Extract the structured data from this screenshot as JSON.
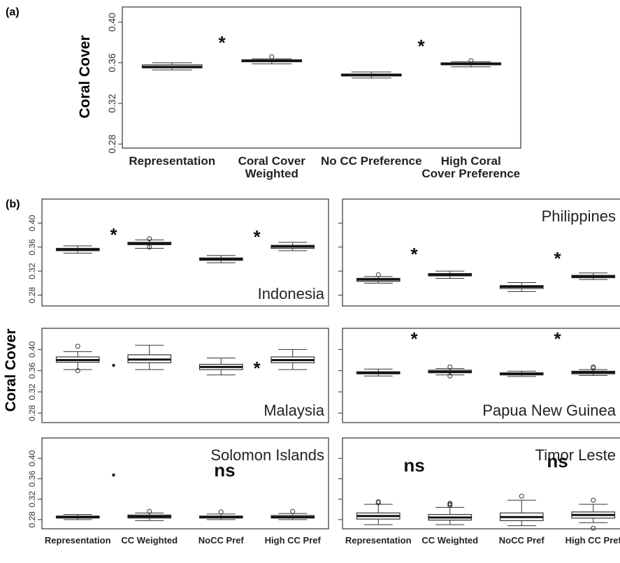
{
  "chart_data": [
    {
      "type": "box",
      "panel_label": "(a)",
      "ylabel": "Coral Cover",
      "categories": [
        "Representation",
        "Coral Cover Weighted",
        "No CC Preference",
        "High Coral Cover Preference"
      ],
      "boxes": [
        {
          "min": 0.353,
          "q1": 0.355,
          "median": 0.356,
          "q3": 0.358,
          "max": 0.36
        },
        {
          "min": 0.359,
          "q1": 0.361,
          "median": 0.362,
          "q3": 0.363,
          "max": 0.364,
          "outliers": [
            0.366
          ]
        },
        {
          "min": 0.345,
          "q1": 0.347,
          "median": 0.348,
          "q3": 0.349,
          "max": 0.351
        },
        {
          "min": 0.356,
          "q1": 0.358,
          "median": 0.359,
          "q3": 0.36,
          "max": 0.361,
          "outliers": [
            0.362
          ]
        }
      ],
      "annotations": [
        "*",
        "*"
      ],
      "ylim": [
        0.276,
        0.415
      ],
      "yticks": [
        0.28,
        0.32,
        0.36,
        {
          "value": 0.4,
          "label": "0.40"
        }
      ]
    },
    {
      "type": "box",
      "panel_label": "(b)",
      "ylabel": "Coral Cover",
      "title": "Indonesia",
      "boxes": [
        {
          "min": 0.35,
          "q1": 0.354,
          "median": 0.356,
          "q3": 0.358,
          "max": 0.362
        },
        {
          "min": 0.358,
          "q1": 0.364,
          "median": 0.366,
          "q3": 0.368,
          "max": 0.372,
          "outliers": [
            0.374,
            0.36
          ]
        },
        {
          "min": 0.334,
          "q1": 0.338,
          "median": 0.34,
          "q3": 0.342,
          "max": 0.346
        },
        {
          "min": 0.354,
          "q1": 0.358,
          "median": 0.361,
          "q3": 0.363,
          "max": 0.368
        }
      ],
      "annotations": [
        "*",
        "*"
      ],
      "ylim": [
        0.262,
        0.44
      ],
      "yticks": [
        0.28,
        0.32,
        0.36,
        {
          "value": 0.4,
          "label": "0.40"
        }
      ]
    },
    {
      "type": "box",
      "title": "Philippines",
      "boxes": [
        {
          "min": 0.3,
          "q1": 0.303,
          "median": 0.306,
          "q3": 0.308,
          "max": 0.311,
          "outliers": [
            0.314
          ]
        },
        {
          "min": 0.308,
          "q1": 0.312,
          "median": 0.314,
          "q3": 0.316,
          "max": 0.32
        },
        {
          "min": 0.286,
          "q1": 0.291,
          "median": 0.294,
          "q3": 0.296,
          "max": 0.301
        },
        {
          "min": 0.306,
          "q1": 0.309,
          "median": 0.311,
          "q3": 0.313,
          "max": 0.317
        }
      ],
      "annotations": [
        "*",
        "*"
      ],
      "ylim": [
        0.262,
        0.44
      ],
      "yticks": [
        0.28,
        0.32,
        0.36,
        0.4
      ]
    },
    {
      "type": "box",
      "title": "Malaysia",
      "boxes": [
        {
          "min": 0.362,
          "q1": 0.376,
          "median": 0.38,
          "q3": 0.386,
          "max": 0.396,
          "outliers": [
            0.406,
            0.36
          ]
        },
        {
          "min": 0.362,
          "q1": 0.375,
          "median": 0.381,
          "q3": 0.39,
          "max": 0.408
        },
        {
          "min": 0.352,
          "q1": 0.362,
          "median": 0.367,
          "q3": 0.372,
          "max": 0.384
        },
        {
          "min": 0.362,
          "q1": 0.375,
          "median": 0.38,
          "q3": 0.386,
          "max": 0.4
        }
      ],
      "annotations": [
        ".",
        "*"
      ],
      "ylim": [
        0.262,
        0.44
      ],
      "yticks": [
        0.28,
        0.32,
        0.36,
        {
          "value": 0.4,
          "label": "0.40"
        }
      ]
    },
    {
      "type": "box",
      "title": "Papua New Guinea",
      "boxes": [
        {
          "min": 0.35,
          "q1": 0.354,
          "median": 0.356,
          "q3": 0.358,
          "max": 0.363
        },
        {
          "min": 0.352,
          "q1": 0.356,
          "median": 0.358,
          "q3": 0.361,
          "max": 0.364,
          "outliers": [
            0.367,
            0.35
          ]
        },
        {
          "min": 0.349,
          "q1": 0.352,
          "median": 0.354,
          "q3": 0.356,
          "max": 0.359
        },
        {
          "min": 0.351,
          "q1": 0.354,
          "median": 0.357,
          "q3": 0.359,
          "max": 0.362,
          "outliers": [
            0.365,
            0.367
          ]
        }
      ],
      "annotations": [
        "*",
        "*"
      ],
      "ylim": [
        0.262,
        0.44
      ],
      "yticks": [
        0.28,
        0.32,
        0.36,
        0.4
      ]
    },
    {
      "type": "box",
      "title": "Solomon Islands",
      "categories": [
        "Representation",
        "CC Weighted",
        "NoCC Pref",
        "High CC Pref"
      ],
      "boxes": [
        {
          "min": 0.28,
          "q1": 0.283,
          "median": 0.285,
          "q3": 0.287,
          "max": 0.29
        },
        {
          "min": 0.278,
          "q1": 0.283,
          "median": 0.286,
          "q3": 0.289,
          "max": 0.293,
          "outliers": [
            0.296
          ]
        },
        {
          "min": 0.28,
          "q1": 0.283,
          "median": 0.285,
          "q3": 0.287,
          "max": 0.291,
          "outliers": [
            0.295
          ]
        },
        {
          "min": 0.28,
          "q1": 0.283,
          "median": 0.285,
          "q3": 0.288,
          "max": 0.292,
          "outliers": [
            0.296
          ]
        }
      ],
      "annotations": [
        ".",
        "ns"
      ],
      "ylim": [
        0.262,
        0.44
      ],
      "yticks": [
        0.28,
        0.32,
        0.36,
        {
          "value": 0.4,
          "label": "0.40"
        }
      ]
    },
    {
      "type": "box",
      "title": "Timor Leste",
      "categories": [
        "Representation",
        "CC Weighted",
        "NoCC Pref",
        "High CC Pref"
      ],
      "boxes": [
        {
          "min": 0.27,
          "q1": 0.281,
          "median": 0.287,
          "q3": 0.293,
          "max": 0.31,
          "outliers": [
            0.313,
            0.315
          ]
        },
        {
          "min": 0.27,
          "q1": 0.279,
          "median": 0.284,
          "q3": 0.29,
          "max": 0.304,
          "outliers": [
            0.308,
            0.31,
            0.312
          ]
        },
        {
          "min": 0.268,
          "q1": 0.278,
          "median": 0.285,
          "q3": 0.293,
          "max": 0.318,
          "outliers": [
            0.326
          ]
        },
        {
          "min": 0.274,
          "q1": 0.283,
          "median": 0.289,
          "q3": 0.295,
          "max": 0.31,
          "outliers": [
            0.318,
            0.263
          ]
        }
      ],
      "annotations": [
        "ns",
        "ns"
      ],
      "ylim": [
        0.262,
        0.44
      ],
      "yticks": [
        0.28,
        0.32,
        0.36,
        0.4
      ]
    }
  ]
}
